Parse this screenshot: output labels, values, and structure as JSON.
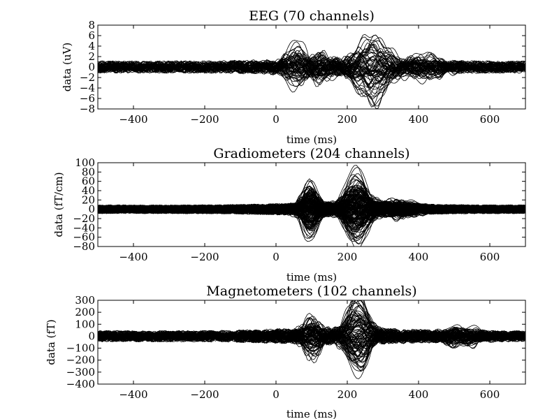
{
  "chart_data": [
    {
      "type": "line",
      "title": "EEG (70 channels)",
      "xlabel": "time (ms)",
      "ylabel": "data (uV)",
      "xlim": [
        -500,
        700
      ],
      "ylim": [
        -8,
        8
      ],
      "x_ticks": [
        -400,
        -200,
        0,
        200,
        400,
        600
      ],
      "x_tick_labels": [
        "−400",
        "−200",
        "0",
        "200",
        "400",
        "600"
      ],
      "y_ticks": [
        8,
        6,
        4,
        2,
        0,
        -2,
        -4,
        -6,
        -8
      ],
      "y_tick_labels": [
        "8",
        "6",
        "4",
        "2",
        "0",
        "−2",
        "−4",
        "−6",
        "−8"
      ],
      "n_series": 70,
      "noise_amplitude": 1.0,
      "components": [
        {
          "center": 60,
          "width": 35,
          "amplitude": -4.5
        },
        {
          "center": 120,
          "width": 40,
          "amplitude": 2.5
        },
        {
          "center": 270,
          "width": 55,
          "amplitude": 6.5
        },
        {
          "center": 420,
          "width": 60,
          "amplitude": 2.0
        }
      ]
    },
    {
      "type": "line",
      "title": "Gradiometers (204 channels)",
      "xlabel": "time (ms)",
      "ylabel": "data (fT/cm)",
      "xlim": [
        -500,
        700
      ],
      "ylim": [
        -80,
        100
      ],
      "x_ticks": [
        -400,
        -200,
        0,
        200,
        400,
        600
      ],
      "x_tick_labels": [
        "−400",
        "−200",
        "0",
        "200",
        "400",
        "600"
      ],
      "y_ticks": [
        100,
        80,
        60,
        40,
        20,
        0,
        -20,
        -40,
        -60,
        -80
      ],
      "y_tick_labels": [
        "100",
        "80",
        "60",
        "40",
        "20",
        "0",
        "−20",
        "−40",
        "−60",
        "−80"
      ],
      "n_series": 204,
      "noise_amplitude": 8,
      "components": [
        {
          "center": 95,
          "width": 28,
          "amplitude": 55
        },
        {
          "center": 225,
          "width": 40,
          "amplitude": 70
        },
        {
          "center": 340,
          "width": 60,
          "amplitude": 15
        }
      ]
    },
    {
      "type": "line",
      "title": "Magnetometers (102 channels)",
      "xlabel": "time (ms)",
      "ylabel": "data (fT)",
      "xlim": [
        -500,
        700
      ],
      "ylim": [
        -400,
        300
      ],
      "x_ticks": [
        -400,
        -200,
        0,
        200,
        400,
        600
      ],
      "x_tick_labels": [
        "−400",
        "−200",
        "0",
        "200",
        "400",
        "600"
      ],
      "y_ticks": [
        300,
        200,
        100,
        0,
        -100,
        -200,
        -300,
        -400
      ],
      "y_tick_labels": [
        "300",
        "200",
        "100",
        "0",
        "−100",
        "−200",
        "−300",
        "−400"
      ],
      "n_series": 102,
      "noise_amplitude": 40,
      "components": [
        {
          "center": 100,
          "width": 30,
          "amplitude": 150
        },
        {
          "center": 230,
          "width": 38,
          "amplitude": -350
        },
        {
          "center": 520,
          "width": 60,
          "amplitude": 60
        }
      ]
    }
  ]
}
